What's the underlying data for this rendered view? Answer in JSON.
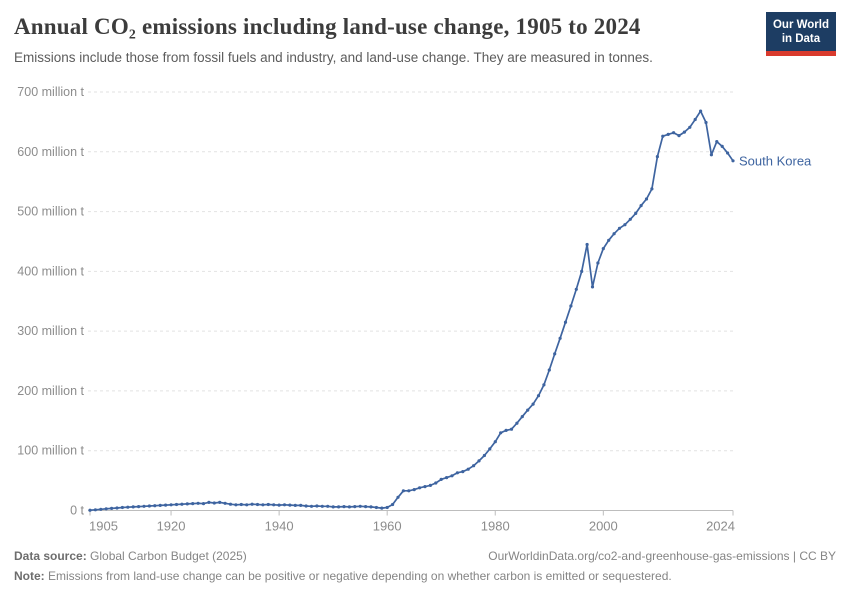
{
  "header": {
    "title": "Annual CO₂ emissions including land-use change, 1905 to 2024",
    "subtitle": "Emissions include those from fossil fuels and industry, and land-use change. They are measured in tonnes.",
    "logo": {
      "line1": "Our World",
      "line2": "in Data"
    }
  },
  "footer": {
    "source_label": "Data source:",
    "source_value": " Global Carbon Budget (2025)",
    "link": "OurWorldinData.org/co2-and-greenhouse-gas-emissions",
    "license_suffix": " | CC BY",
    "note_label": "Note:",
    "note_value": " Emissions from land-use change can be positive or negative depending on whether carbon is emitted or sequestered."
  },
  "chart_data": {
    "type": "line",
    "title": "Annual CO₂ emissions including land-use change, 1905 to 2024",
    "xlabel": "",
    "ylabel": "",
    "unit": "tonnes (millions)",
    "xlim": [
      1905,
      2024
    ],
    "ylim": [
      0,
      700
    ],
    "grid": "horizontal-dashed",
    "legend": "end-of-line-label",
    "yticks": [
      {
        "value": 0,
        "label": "0 t"
      },
      {
        "value": 100,
        "label": "100 million t"
      },
      {
        "value": 200,
        "label": "200 million t"
      },
      {
        "value": 300,
        "label": "300 million t"
      },
      {
        "value": 400,
        "label": "400 million t"
      },
      {
        "value": 500,
        "label": "500 million t"
      },
      {
        "value": 600,
        "label": "600 million t"
      },
      {
        "value": 700,
        "label": "700 million t"
      }
    ],
    "xticks": [
      {
        "value": 1905,
        "label": "1905"
      },
      {
        "value": 1920,
        "label": "1920"
      },
      {
        "value": 1940,
        "label": "1940"
      },
      {
        "value": 1960,
        "label": "1960"
      },
      {
        "value": 1980,
        "label": "1980"
      },
      {
        "value": 2000,
        "label": "2000"
      },
      {
        "value": 2024,
        "label": "2024"
      }
    ],
    "series": [
      {
        "name": "South Korea",
        "color": "#3e64a0",
        "start_year": 1905,
        "values_million_t": [
          0.5,
          1.2,
          2,
          2.8,
          3.5,
          4.2,
          5,
          5.5,
          6,
          6.5,
          7,
          7.5,
          8,
          8.5,
          9,
          9.5,
          10,
          10.5,
          11,
          11.5,
          12,
          11.5,
          13.5,
          12.5,
          13.5,
          12,
          10.5,
          9.5,
          10,
          9.5,
          10.5,
          10,
          9.5,
          10,
          9.5,
          9,
          9.5,
          9,
          8.5,
          8.5,
          7.5,
          7,
          7.5,
          7,
          7,
          6,
          6,
          6.5,
          6,
          6.5,
          7,
          6.5,
          6,
          5,
          4,
          5,
          10,
          22,
          33,
          33,
          35,
          38,
          40,
          42,
          46,
          52,
          55,
          58,
          63,
          65,
          69,
          75,
          83,
          92,
          103,
          115,
          130,
          134,
          136,
          146,
          157,
          168,
          178,
          192,
          210,
          235,
          262,
          288,
          315,
          342,
          370,
          400,
          445,
          374,
          414,
          438,
          452,
          463,
          472,
          478,
          487,
          497,
          510,
          521,
          538,
          592,
          626,
          629,
          632,
          627,
          633,
          641,
          654,
          668,
          649,
          595,
          617,
          609,
          598,
          585
        ]
      }
    ]
  }
}
